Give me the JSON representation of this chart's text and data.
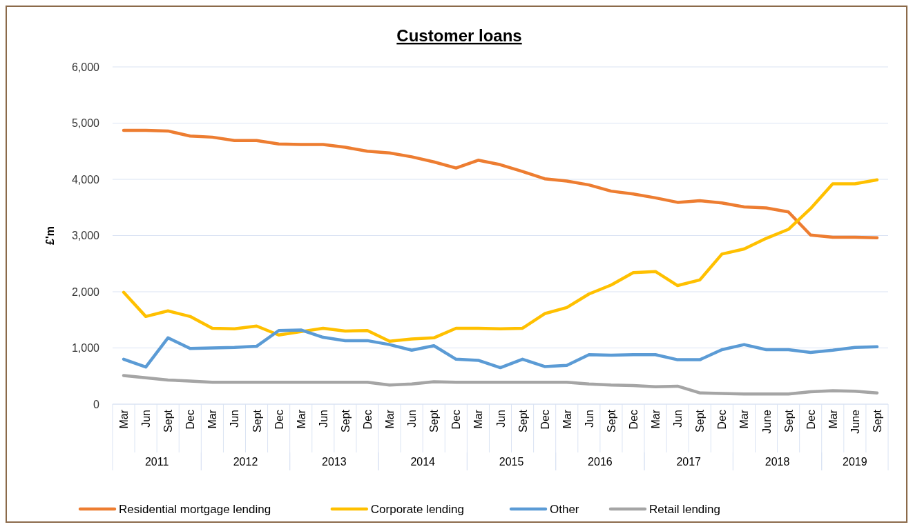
{
  "chart_data": {
    "type": "line",
    "title": "Customer loans",
    "ylabel": "£'m",
    "categories": [
      "Mar",
      "Jun",
      "Sept",
      "Dec",
      "Mar",
      "Jun",
      "Sept",
      "Dec",
      "Mar",
      "Jun",
      "Sept",
      "Dec",
      "Mar",
      "Jun",
      "Sept",
      "Dec",
      "Mar",
      "Jun",
      "Sept",
      "Dec",
      "Mar",
      "Jun",
      "Sept",
      "Dec",
      "Mar",
      "Jun",
      "Sept",
      "Dec",
      "Mar",
      "June",
      "Sept",
      "Dec",
      "Mar",
      "June",
      "Sept"
    ],
    "annotations": [
      "2011",
      "2012",
      "2013",
      "2014",
      "2015",
      "2016",
      "2017",
      "2018",
      "2019"
    ],
    "series": [
      {
        "name": "Residential mortgage lending",
        "color": "#ed7d31",
        "values": [
          4870,
          4870,
          4860,
          4770,
          4750,
          4690,
          4690,
          4630,
          4620,
          4620,
          4570,
          4500,
          4470,
          4400,
          4310,
          4200,
          4340,
          4260,
          4140,
          4010,
          3970,
          3900,
          3790,
          3740,
          3670,
          3590,
          3620,
          3580,
          3510,
          3490,
          3420,
          3010,
          2970,
          2970,
          2960
        ]
      },
      {
        "name": "Corporate lending",
        "color": "#ffc000",
        "values": [
          1990,
          1560,
          1660,
          1560,
          1350,
          1340,
          1390,
          1230,
          1290,
          1350,
          1300,
          1310,
          1120,
          1160,
          1180,
          1350,
          1350,
          1340,
          1350,
          1610,
          1720,
          1960,
          2120,
          2340,
          2360,
          2110,
          2210,
          2670,
          2760,
          2950,
          3110,
          3480,
          3920,
          3920,
          3990
        ]
      },
      {
        "name": "Other",
        "color": "#5b9bd5",
        "values": [
          800,
          660,
          1180,
          990,
          1000,
          1010,
          1030,
          1310,
          1320,
          1190,
          1130,
          1130,
          1060,
          960,
          1040,
          800,
          780,
          650,
          800,
          670,
          690,
          880,
          870,
          880,
          880,
          790,
          790,
          970,
          1060,
          970,
          970,
          920,
          960,
          1010,
          1020
        ]
      },
      {
        "name": "Retail lending",
        "color": "#a5a5a5",
        "values": [
          510,
          470,
          430,
          410,
          390,
          390,
          390,
          390,
          390,
          390,
          390,
          390,
          340,
          360,
          400,
          390,
          390,
          390,
          390,
          390,
          390,
          360,
          340,
          330,
          310,
          320,
          200,
          190,
          180,
          180,
          180,
          220,
          240,
          230,
          200
        ]
      }
    ],
    "ylim": [
      0,
      6000
    ],
    "yticks": [
      {
        "value": 0,
        "label": "0"
      },
      {
        "value": 1000,
        "label": "1,000"
      },
      {
        "value": 2000,
        "label": "2,000"
      },
      {
        "value": 3000,
        "label": "3,000"
      },
      {
        "value": 4000,
        "label": "4,000"
      },
      {
        "value": 5000,
        "label": "5,000"
      },
      {
        "value": 6000,
        "label": "6,000"
      }
    ],
    "grid": "y",
    "legend": "bottom",
    "marker": "none",
    "line_style": "solid"
  }
}
